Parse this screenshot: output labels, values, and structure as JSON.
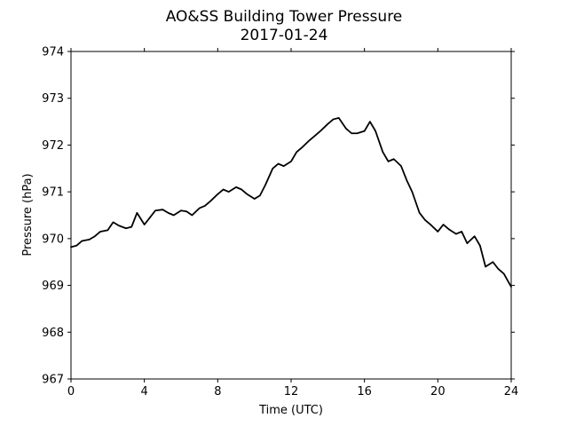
{
  "chart_data": {
    "type": "line",
    "title": "AO&SS Building Tower Pressure",
    "subtitle": "2017-01-24",
    "xlabel": "Time (UTC)",
    "ylabel": "Pressure (hPa)",
    "xlim": [
      0,
      24
    ],
    "ylim": [
      967,
      974
    ],
    "xticks": [
      "0",
      "4",
      "8",
      "12",
      "16",
      "20",
      "24"
    ],
    "yticks": [
      "967",
      "968",
      "969",
      "970",
      "971",
      "972",
      "973",
      "974"
    ],
    "grid": false,
    "line_color": "#000000",
    "series": [
      {
        "x": [
          0,
          0.3,
          0.6,
          1.0,
          1.3,
          1.6,
          2.0,
          2.3,
          2.6,
          3.0,
          3.3,
          3.6,
          4.0,
          4.3,
          4.6,
          5.0,
          5.3,
          5.6,
          6.0,
          6.3,
          6.6,
          7.0,
          7.3,
          7.6,
          8.0,
          8.3,
          8.6,
          9.0,
          9.3,
          9.6,
          10.0,
          10.3,
          10.6,
          11.0,
          11.3,
          11.6,
          12.0,
          12.3,
          12.6,
          13.0,
          13.3,
          13.6,
          14.0,
          14.3,
          14.6,
          15.0,
          15.3,
          15.6,
          16.0,
          16.3,
          16.6,
          17.0,
          17.3,
          17.6,
          18.0,
          18.3,
          18.6,
          19.0,
          19.3,
          19.6,
          20.0,
          20.3,
          20.6,
          21.0,
          21.3,
          21.6,
          22.0,
          22.3,
          22.6,
          23.0,
          23.3,
          23.6,
          24.0
        ],
        "y": [
          969.82,
          969.85,
          969.95,
          969.98,
          970.05,
          970.15,
          970.18,
          970.35,
          970.28,
          970.22,
          970.25,
          970.55,
          970.3,
          970.45,
          970.6,
          970.62,
          970.55,
          970.5,
          970.6,
          970.58,
          970.5,
          970.65,
          970.7,
          970.8,
          970.95,
          971.05,
          971.0,
          971.1,
          971.05,
          970.95,
          970.85,
          970.92,
          971.15,
          971.5,
          971.6,
          971.55,
          971.65,
          971.85,
          971.95,
          972.1,
          972.2,
          972.3,
          972.45,
          972.55,
          972.58,
          972.35,
          972.25,
          972.25,
          972.3,
          972.5,
          972.3,
          971.85,
          971.65,
          971.7,
          971.55,
          971.25,
          971.0,
          970.55,
          970.4,
          970.3,
          970.15,
          970.3,
          970.2,
          970.1,
          970.15,
          969.9,
          970.05,
          969.85,
          969.4,
          969.5,
          969.35,
          969.25,
          968.97
        ]
      }
    ]
  }
}
